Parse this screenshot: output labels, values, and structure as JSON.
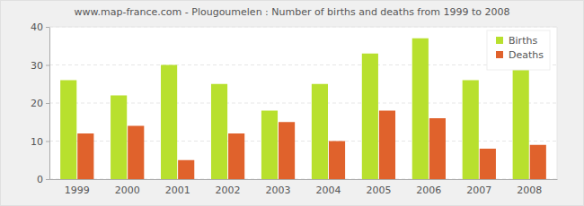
{
  "chart_data": {
    "type": "bar",
    "title": "www.map-france.com - Plougoumelen : Number of births and deaths from 1999 to 2008",
    "categories": [
      "1999",
      "2000",
      "2001",
      "2002",
      "2003",
      "2004",
      "2005",
      "2006",
      "2007",
      "2008"
    ],
    "series": [
      {
        "name": "Births",
        "color": "#b8e02e",
        "values": [
          26,
          22,
          30,
          25,
          18,
          25,
          33,
          37,
          26,
          31
        ]
      },
      {
        "name": "Deaths",
        "color": "#e0622c",
        "values": [
          12,
          14,
          5,
          12,
          15,
          10,
          18,
          16,
          8,
          9
        ]
      }
    ],
    "ylim": [
      0,
      40
    ],
    "yticks": [
      0,
      10,
      20,
      30,
      40
    ],
    "grid": true,
    "legend": "upper right"
  }
}
